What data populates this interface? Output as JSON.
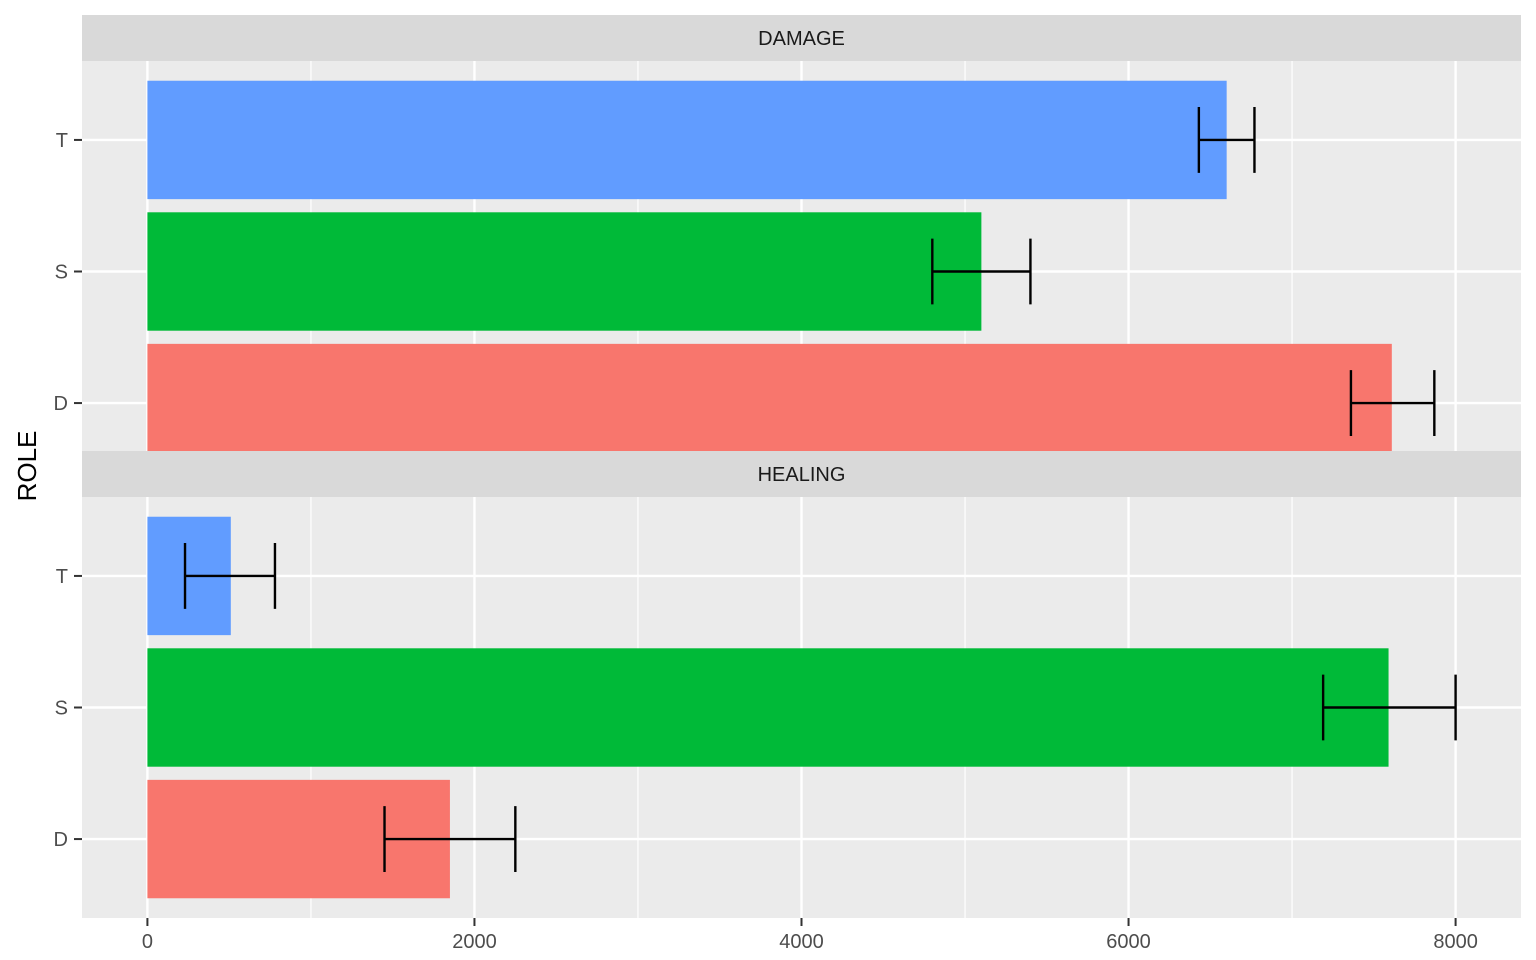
{
  "chart_data": {
    "type": "bar",
    "orientation": "horizontal",
    "ylabel": "ROLE",
    "xlabel": "",
    "categories": [
      "D",
      "S",
      "T"
    ],
    "xlim": [
      -400,
      8400
    ],
    "x_ticks": [
      0,
      2000,
      4000,
      6000,
      8000
    ],
    "x_tick_labels": [
      "0",
      "2000",
      "4000",
      "6000",
      "8000"
    ],
    "grid": true,
    "legend": "none",
    "colors": {
      "D": "#F8766D",
      "S": "#00BA38",
      "T": "#619CFF"
    },
    "panels": [
      {
        "title": "DAMAGE",
        "values": {
          "D": 7610,
          "S": 5100,
          "T": 6600
        },
        "errors": {
          "D": [
            7360,
            7870
          ],
          "S": [
            4800,
            5400
          ],
          "T": [
            6430,
            6770
          ]
        }
      },
      {
        "title": "HEALING",
        "values": {
          "D": 1850,
          "S": 7590,
          "T": 510
        },
        "errors": {
          "D": [
            1450,
            2250
          ],
          "S": [
            7190,
            8000
          ],
          "T": [
            230,
            780
          ]
        }
      }
    ]
  }
}
